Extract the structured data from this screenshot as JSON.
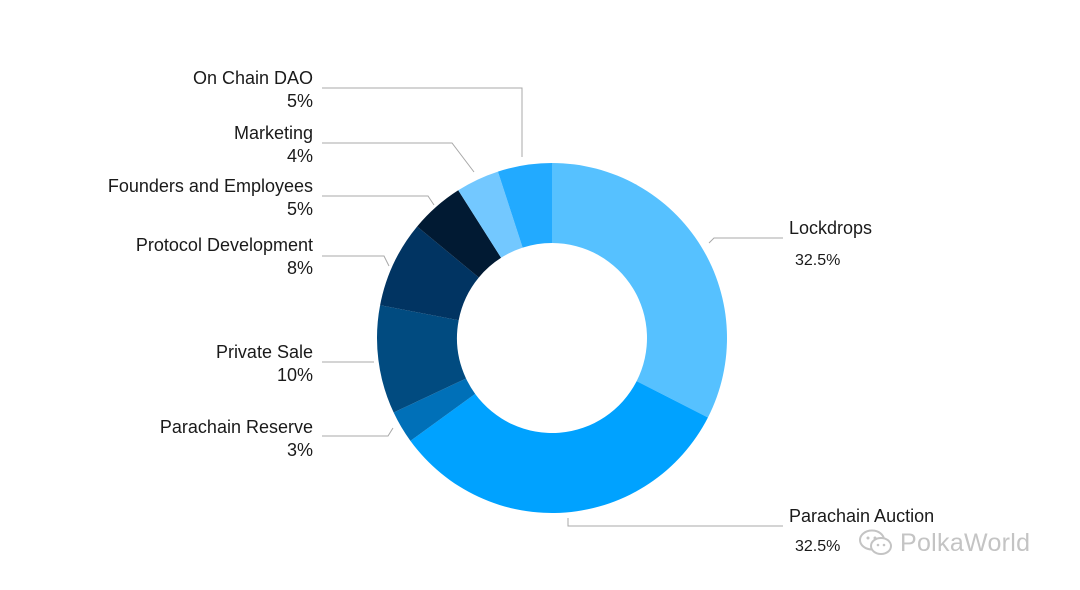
{
  "chart_data": {
    "type": "pie",
    "donut": true,
    "slices": [
      {
        "label": "Lockdrops",
        "value": 32.5,
        "display": "32.5%",
        "color": "#56c1ff"
      },
      {
        "label": "Parachain Auction",
        "value": 32.5,
        "display": "32.5%",
        "color": "#00a2ff"
      },
      {
        "label": "Parachain Reserve",
        "value": 3,
        "display": "3%",
        "color": "#0070b8"
      },
      {
        "label": "Private Sale",
        "value": 10,
        "display": "10%",
        "color": "#014b80"
      },
      {
        "label": "Protocol Development",
        "value": 8,
        "display": "8%",
        "color": "#013462"
      },
      {
        "label": "Founders and Employees",
        "value": 5,
        "display": "5%",
        "color": "#011a33"
      },
      {
        "label": "Marketing",
        "value": 4,
        "display": "4%",
        "color": "#73c8ff"
      },
      {
        "label": "On Chain DAO",
        "value": 5,
        "display": "5%",
        "color": "#22aaff"
      }
    ]
  },
  "watermark": {
    "text": "PolkaWorld",
    "icon": "wechat-icon"
  }
}
